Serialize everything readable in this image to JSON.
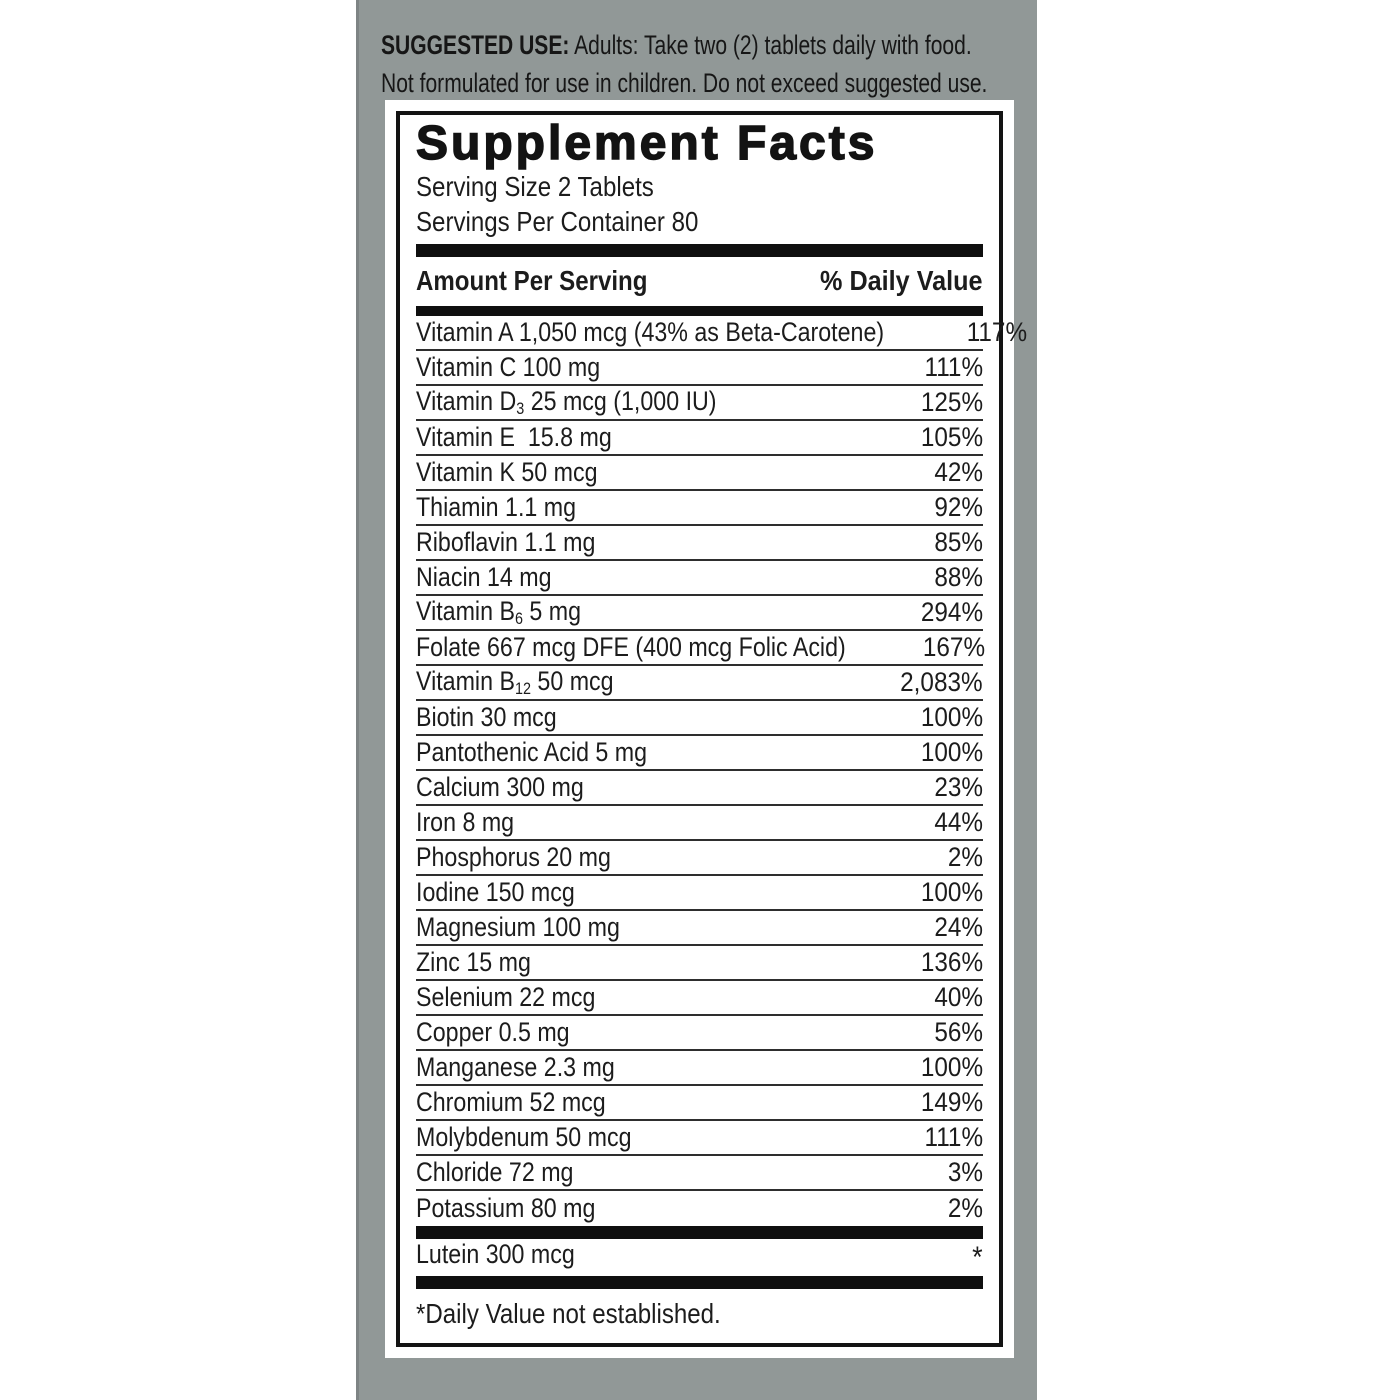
{
  "colors": {
    "page_bg": "#FFFFFF",
    "panel_gray": "#919897",
    "panel_edge_gray": "#7E8484",
    "label_bg": "#FFFFFF",
    "ink": "#1C1C1C"
  },
  "suggested_use": {
    "bold_label": "SUGGESTED USE:",
    "line1_rest": " Adults: Take two (2) tablets daily with food.",
    "line2": "Not formulated for use in children. Do not exceed suggested use."
  },
  "supplement_facts": {
    "title": "Supplement Facts",
    "serving_size": "Serving Size 2 Tablets",
    "servings_per_container": "Servings Per Container 80",
    "columns": {
      "amount": "Amount Per Serving",
      "daily_value": "% Daily Value"
    },
    "rows": [
      {
        "name": "Vitamin A 1,050 mcg (43% as Beta-Carotene)",
        "dv": "117%"
      },
      {
        "name": "Vitamin C 100 mg",
        "dv": "111%"
      },
      {
        "name": "Vitamin D{3} 25 mcg (1,000 IU)",
        "dv": "125%"
      },
      {
        "name": "Vitamin E  15.8 mg",
        "dv": "105%"
      },
      {
        "name": "Vitamin K 50 mcg",
        "dv": "42%"
      },
      {
        "name": "Thiamin 1.1 mg",
        "dv": "92%"
      },
      {
        "name": "Riboflavin 1.1 mg",
        "dv": "85%"
      },
      {
        "name": "Niacin 14 mg",
        "dv": "88%"
      },
      {
        "name": "Vitamin B{6} 5 mg",
        "dv": "294%"
      },
      {
        "name": "Folate 667 mcg DFE (400 mcg Folic Acid)",
        "dv": "167%"
      },
      {
        "name": "Vitamin B{12} 50 mcg",
        "dv": "2,083%"
      },
      {
        "name": "Biotin 30 mcg",
        "dv": "100%"
      },
      {
        "name": "Pantothenic Acid 5 mg",
        "dv": "100%"
      },
      {
        "name": "Calcium 300 mg",
        "dv": "23%"
      },
      {
        "name": "Iron 8 mg",
        "dv": "44%"
      },
      {
        "name": "Phosphorus 20 mg",
        "dv": "2%"
      },
      {
        "name": "Iodine 150 mcg",
        "dv": "100%"
      },
      {
        "name": "Magnesium 100 mg",
        "dv": "24%"
      },
      {
        "name": "Zinc 15 mg",
        "dv": "136%"
      },
      {
        "name": "Selenium 22 mcg",
        "dv": "40%"
      },
      {
        "name": "Copper 0.5 mg",
        "dv": "56%"
      },
      {
        "name": "Manganese 2.3 mg",
        "dv": "100%"
      },
      {
        "name": "Chromium 52 mcg",
        "dv": "149%"
      },
      {
        "name": "Molybdenum 50 mcg",
        "dv": "111%"
      },
      {
        "name": "Chloride 72 mg",
        "dv": "3%"
      },
      {
        "name": "Potassium 80 mg",
        "dv": "2%"
      }
    ],
    "other_rows": [
      {
        "name": "Lutein 300 mcg",
        "dv": "*"
      }
    ],
    "footnote": "*Daily Value not established."
  }
}
